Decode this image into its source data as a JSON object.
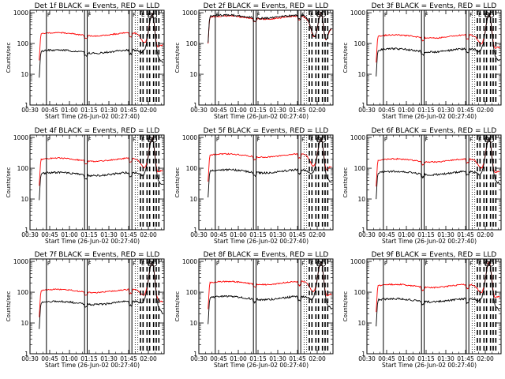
{
  "figure": {
    "panels": [
      {
        "title": "Det 1f BLACK = Events, RED = LLD",
        "events_level": 55,
        "lld_level": 200,
        "events_spike": 900,
        "lld_spike": 900
      },
      {
        "title": "Det 2f BLACK = Events, RED = LLD",
        "events_level": 750,
        "lld_level": 700,
        "events_spike": 1000,
        "lld_spike": 1000
      },
      {
        "title": "Det 3f BLACK = Events, RED = LLD",
        "events_level": 60,
        "lld_level": 170,
        "events_spike": 950,
        "lld_spike": 950
      },
      {
        "title": "Det 4f BLACK = Events, RED = LLD",
        "events_level": 65,
        "lld_level": 190,
        "events_spike": 950,
        "lld_spike": 950
      },
      {
        "title": "Det 5f BLACK = Events, RED = LLD",
        "events_level": 80,
        "lld_level": 260,
        "events_spike": 950,
        "lld_spike": 950
      },
      {
        "title": "Det 6f BLACK = Events, RED = LLD",
        "events_level": 70,
        "lld_level": 180,
        "events_spike": 950,
        "lld_spike": 950
      },
      {
        "title": "Det 7f BLACK = Events, RED = LLD",
        "events_level": 45,
        "lld_level": 110,
        "events_spike": 950,
        "lld_spike": 950
      },
      {
        "title": "Det 8f BLACK = Events, RED = LLD",
        "events_level": 65,
        "lld_level": 200,
        "events_spike": 950,
        "lld_spike": 950
      },
      {
        "title": "Det 9f BLACK = Events, RED = LLD",
        "events_level": 55,
        "lld_level": 160,
        "events_spike": 950,
        "lld_spike": 950
      }
    ]
  },
  "chart_data": {
    "type": "line",
    "layout": "3x3 grid",
    "series_colors": {
      "events": "#000000",
      "lld": "#ff0000"
    },
    "x_ticks": [
      "00:30",
      "00:45",
      "01:00",
      "01:15",
      "01:30",
      "01:45",
      "02:00"
    ],
    "x_tick_minutes": [
      30,
      45,
      60,
      75,
      90,
      105,
      120
    ],
    "xlim": [
      30,
      132
    ],
    "xlabel": "Start Time (26-Jun-02 00:27:40)",
    "ylabel": "Counts/sec",
    "yscale": "log",
    "ylim": [
      1,
      1200
    ],
    "y_ticks": [
      "1",
      "10",
      "100",
      "1000"
    ],
    "y_tick_values": [
      1,
      10,
      100,
      1000
    ],
    "data_start_minute": 37,
    "data_end_minute": 131,
    "spike_peak_minute": 123,
    "solid_markers_minutes": [
      42.5,
      71.5,
      73.5,
      105.5,
      107.5
    ],
    "dashed_markers_minutes": [
      114,
      116,
      119,
      121,
      124,
      126,
      128
    ],
    "dotted_markers_minutes": [
      110,
      112
    ],
    "flag_labels": [
      {
        "label": "F",
        "minute": 42.5
      },
      {
        "label": "F",
        "minute": 73.5
      },
      {
        "label": "F",
        "minute": 107.5
      },
      {
        "label": "E",
        "minute": 114
      },
      {
        "label": "E",
        "minute": 119
      }
    ],
    "series": [
      {
        "detector": "1f",
        "events": 55,
        "lld": 200,
        "peak": 900
      },
      {
        "detector": "2f",
        "events": 750,
        "lld": 700,
        "peak": 1000
      },
      {
        "detector": "3f",
        "events": 60,
        "lld": 170,
        "peak": 950
      },
      {
        "detector": "4f",
        "events": 65,
        "lld": 190,
        "peak": 950
      },
      {
        "detector": "5f",
        "events": 80,
        "lld": 260,
        "peak": 950
      },
      {
        "detector": "6f",
        "events": 70,
        "lld": 180,
        "peak": 950
      },
      {
        "detector": "7f",
        "events": 45,
        "lld": 110,
        "peak": 950
      },
      {
        "detector": "8f",
        "events": 65,
        "lld": 200,
        "peak": 950
      },
      {
        "detector": "9f",
        "events": 55,
        "lld": 160,
        "peak": 950
      }
    ]
  }
}
